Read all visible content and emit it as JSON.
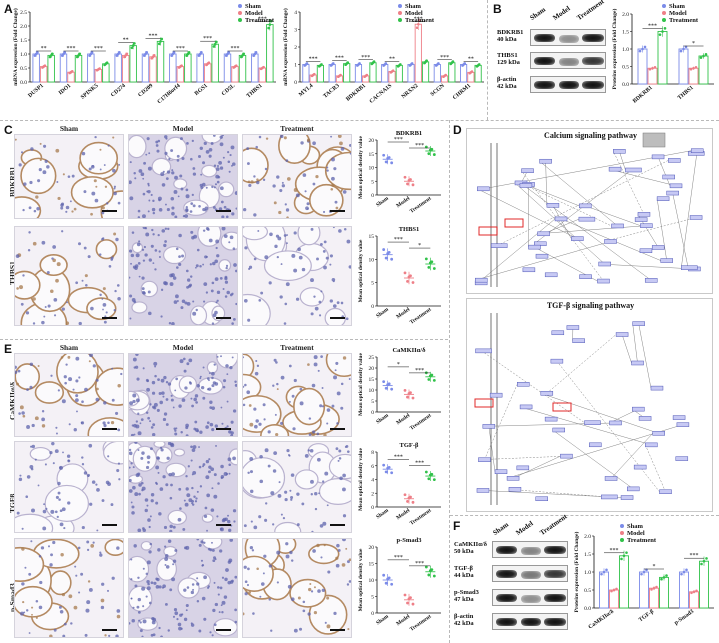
{
  "panels": {
    "A": "A",
    "B": "B",
    "C": "C",
    "D": "D",
    "E": "E",
    "F": "F"
  },
  "colors": {
    "sham": "#7b8be8",
    "model": "#ee7f87",
    "treatment": "#31c24a",
    "tissue_bg": "#ece7ef",
    "nuclei": "#6e73b8",
    "brown_stain": "#c49a6c"
  },
  "legend": [
    "Sham",
    "Model",
    "Treatment"
  ],
  "groups": [
    "Sham",
    "Model",
    "Treatment"
  ],
  "chart_data": [
    {
      "id": "A-left",
      "type": "bar",
      "ylabel": "mRNA expression (Fold Change)",
      "ylim": [
        0,
        2.5
      ],
      "yticks": [
        "0.0",
        "0.5",
        "1.0",
        "1.5",
        "2.0",
        "2.5"
      ],
      "categories": [
        "DUSP1",
        "IDO1",
        "SPINK5",
        "CD274",
        "CD209",
        "C17H6orf4",
        "RGS1",
        "CD5L",
        "THBS1"
      ],
      "series": [
        {
          "name": "Sham",
          "values": [
            1.0,
            1.0,
            1.0,
            1.0,
            1.0,
            1.0,
            1.0,
            1.0,
            1.0
          ]
        },
        {
          "name": "Model",
          "values": [
            0.55,
            0.35,
            0.45,
            0.95,
            0.9,
            0.55,
            0.65,
            0.55,
            0.5
          ]
        },
        {
          "name": "Treatment",
          "values": [
            0.95,
            0.95,
            0.65,
            1.3,
            1.45,
            1.0,
            1.35,
            0.95,
            2.05
          ]
        }
      ],
      "sig": [
        "**",
        "***",
        "***",
        "**",
        "***",
        "***",
        "***",
        "***",
        "***"
      ]
    },
    {
      "id": "A-right",
      "type": "bar",
      "ylabel": "mRNA expression (Fold Change)",
      "ylim": [
        0,
        4
      ],
      "yticks": [
        "0",
        "1",
        "2",
        "3",
        "4"
      ],
      "categories": [
        "MYL4",
        "TACR3",
        "BDKRB1",
        "CACNA1S",
        "NRXN2",
        "SCGN",
        "CHRM1"
      ],
      "series": [
        {
          "name": "Sham",
          "values": [
            1.0,
            1.0,
            1.0,
            1.0,
            1.0,
            1.0,
            1.0
          ]
        },
        {
          "name": "Model",
          "values": [
            0.4,
            0.35,
            0.35,
            0.6,
            3.3,
            0.35,
            0.55
          ]
        },
        {
          "name": "Treatment",
          "values": [
            0.95,
            1.05,
            1.1,
            0.95,
            1.15,
            1.1,
            0.95
          ]
        }
      ],
      "sig": [
        "***",
        "***",
        "***",
        "**",
        "***",
        "***",
        "**"
      ]
    },
    {
      "id": "B",
      "type": "bar",
      "ylabel": "Proteins expression (Fold Change)",
      "ylim": [
        0,
        2.0
      ],
      "yticks": [
        "0.0",
        "0.5",
        "1.0",
        "1.5",
        "2.0"
      ],
      "categories": [
        "BDKRB1",
        "THBS1"
      ],
      "series": [
        {
          "name": "Sham",
          "values": [
            1.0,
            1.0
          ]
        },
        {
          "name": "Model",
          "values": [
            0.45,
            0.45
          ]
        },
        {
          "name": "Treatment",
          "values": [
            1.5,
            0.8
          ]
        }
      ],
      "sig": [
        "***",
        "*"
      ]
    },
    {
      "id": "C-BDKRB1",
      "type": "scatter",
      "title": "BDKRB1",
      "ylabel": "Mean optical density value",
      "ylim": [
        0,
        20
      ],
      "yticks": [
        "0",
        "5",
        "10",
        "15",
        "20"
      ],
      "categories": [
        "Sham",
        "Model",
        "Treatment"
      ],
      "values": [
        13,
        5,
        16
      ],
      "sig": [
        "***",
        "***"
      ]
    },
    {
      "id": "C-THBS1",
      "type": "scatter",
      "title": "THBS1",
      "ylabel": "Mean optical density value",
      "ylim": [
        0,
        15
      ],
      "yticks": [
        "0",
        "5",
        "10",
        "15"
      ],
      "categories": [
        "Sham",
        "Model",
        "Treatment"
      ],
      "values": [
        11,
        6,
        9
      ],
      "sig": [
        "***",
        "*"
      ]
    },
    {
      "id": "E-CaMKII",
      "type": "scatter",
      "title": "CaMKIIα/δ",
      "ylabel": "Mean optical density value",
      "ylim": [
        0,
        25
      ],
      "yticks": [
        "0",
        "5",
        "10",
        "15",
        "20",
        "25"
      ],
      "categories": [
        "Sham",
        "Model",
        "Treatment"
      ],
      "values": [
        12,
        8,
        16
      ],
      "sig": [
        "*",
        "***"
      ]
    },
    {
      "id": "E-TGFb",
      "type": "scatter",
      "title": "TGF-β",
      "ylabel": "Mean optical density value",
      "ylim": [
        0,
        8
      ],
      "yticks": [
        "0",
        "2",
        "4",
        "6",
        "8"
      ],
      "categories": [
        "Sham",
        "Model",
        "Treatment"
      ],
      "values": [
        5.5,
        1.2,
        4.5
      ],
      "sig": [
        "***",
        "***"
      ]
    },
    {
      "id": "E-pSmad3",
      "type": "scatter",
      "title": "p-Smad3",
      "ylabel": "Mean optical density value",
      "ylim": [
        0,
        20
      ],
      "yticks": [
        "0",
        "5",
        "10",
        "15",
        "20"
      ],
      "categories": [
        "Sham",
        "Model",
        "Treatment"
      ],
      "values": [
        10,
        4,
        12.5
      ],
      "sig": [
        "***",
        "***"
      ]
    },
    {
      "id": "F",
      "type": "bar",
      "ylabel": "Proteins expression (Fold Change)",
      "ylim": [
        0,
        2.0
      ],
      "yticks": [
        "0.0",
        "0.5",
        "1.0",
        "1.5",
        "2.0"
      ],
      "categories": [
        "CaMKIIα/δ",
        "TGF-β",
        "p-Smad3"
      ],
      "series": [
        {
          "name": "Sham",
          "values": [
            1.0,
            1.0,
            1.0
          ]
        },
        {
          "name": "Model",
          "values": [
            0.5,
            0.55,
            0.45
          ]
        },
        {
          "name": "Treatment",
          "values": [
            1.45,
            0.85,
            1.3
          ]
        }
      ],
      "sig": [
        "***",
        "*",
        "***"
      ]
    }
  ],
  "histology": {
    "columns": [
      "Sham",
      "Model",
      "Treatment"
    ],
    "C_rows": [
      "BDKRB1",
      "THBS1"
    ],
    "E_rows": [
      "CaMKIIα/δ",
      "TGFβ",
      "p-Smad3"
    ]
  },
  "western_B": {
    "lanes": [
      "Sham",
      "Model",
      "Treatment"
    ],
    "rows": [
      {
        "name": "BDKRB1",
        "size": "40 kDa"
      },
      {
        "name": "THBS1",
        "size": "129 kDa"
      },
      {
        "name": "β-actin",
        "size": "42 kDa"
      }
    ]
  },
  "western_F": {
    "lanes": [
      "Sham",
      "Model",
      "Treatment"
    ],
    "rows": [
      {
        "name": "CaMKIIα/δ",
        "size": "50 kDa"
      },
      {
        "name": "TGF-β",
        "size": "44 kDa"
      },
      {
        "name": "p-Smad3",
        "size": "47 kDa"
      },
      {
        "name": "β-actin",
        "size": "42 kDa"
      }
    ]
  },
  "pathways": {
    "calcium": "Calcium signaling pathway",
    "tgf": "TGF-β signaling pathway"
  }
}
